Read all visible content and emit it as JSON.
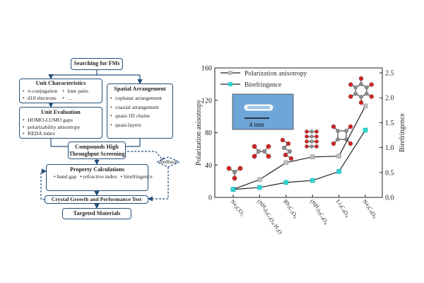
{
  "flowchart": {
    "search": "Searching for FMs",
    "unit_characteristics": {
      "title": "Unit Characteristics",
      "items": [
        "π-conjugation",
        "lone pairs",
        "d10 electrons",
        "…"
      ]
    },
    "spatial_arrangement": {
      "title": "Spatial Arrangement",
      "items": [
        "coplanar arrangement",
        "coaxial arrangement",
        "quasi-1D chains",
        "quasi-layers"
      ]
    },
    "unit_evaluation": {
      "title": "Unit Evaluation",
      "items": [
        "HOMO-LUMO gaps",
        "polarizability anisotropy",
        "REDA index"
      ]
    },
    "screening": "Compounds High Throughput Screening",
    "feedback": "feedback",
    "property": {
      "title": "Property Calculations",
      "items": [
        "band gap",
        "refractive index",
        "birefringence"
      ]
    },
    "crystal": "Crystal Growth and Performance Test",
    "targeted": "Targeted Materials"
  },
  "inset": {
    "scale_label": "4 mm"
  },
  "colors": {
    "box_border": "#24507a",
    "pol_line": "#222222",
    "pol_marker": "#bdbdbd",
    "bir_marker": "#2fd5d1",
    "oxygen": "#d42222",
    "carbon": "#8c8c8c"
  },
  "chart_data": {
    "type": "line",
    "categories": [
      "Na2CO3",
      "(NH4)2C2O4·H2O",
      "Rb2C2O6",
      "(NH2)2C4O4",
      "Li2C4O4",
      "Na2C6O6"
    ],
    "category_labels": [
      {
        "text": "Na",
        "sub1": "2",
        "mid": "CO",
        "sub2": "3",
        "tail": ""
      },
      {
        "text": "(NH",
        "sub1": "4",
        "mid": ")",
        "sub2": "2",
        "tail": "C2O4·H2O"
      },
      {
        "text": "Rb",
        "sub1": "2",
        "mid": "C",
        "sub2": "2",
        "tail": "O6"
      },
      {
        "text": "(NH",
        "sub1": "2",
        "mid": ")",
        "sub2": "2",
        "tail": "C4O4"
      },
      {
        "text": "Li",
        "sub1": "2",
        "mid": "C",
        "sub2": "4",
        "tail": "O4"
      },
      {
        "text": "Na",
        "sub1": "2",
        "mid": "C",
        "sub2": "6",
        "tail": "O6"
      }
    ],
    "ylabel": "Polarization anisotropy",
    "y2label": "Birefringence",
    "ylim": [
      0,
      160
    ],
    "y2lim": [
      0,
      2.6
    ],
    "yticks": [
      0,
      40,
      80,
      120,
      160
    ],
    "y2ticks": [
      "0.0",
      "0.5",
      "1.0",
      "1.5",
      "2.0",
      "2.5"
    ],
    "series": [
      {
        "name": "Polarization anisotropy",
        "axis": "left",
        "values": [
          10,
          22,
          43,
          50,
          51,
          113
        ]
      },
      {
        "name": "Birefringence",
        "axis": "right",
        "values": [
          0.16,
          0.2,
          0.3,
          0.34,
          0.52,
          1.35
        ]
      }
    ],
    "legend_position": "top-left",
    "grid": false
  }
}
